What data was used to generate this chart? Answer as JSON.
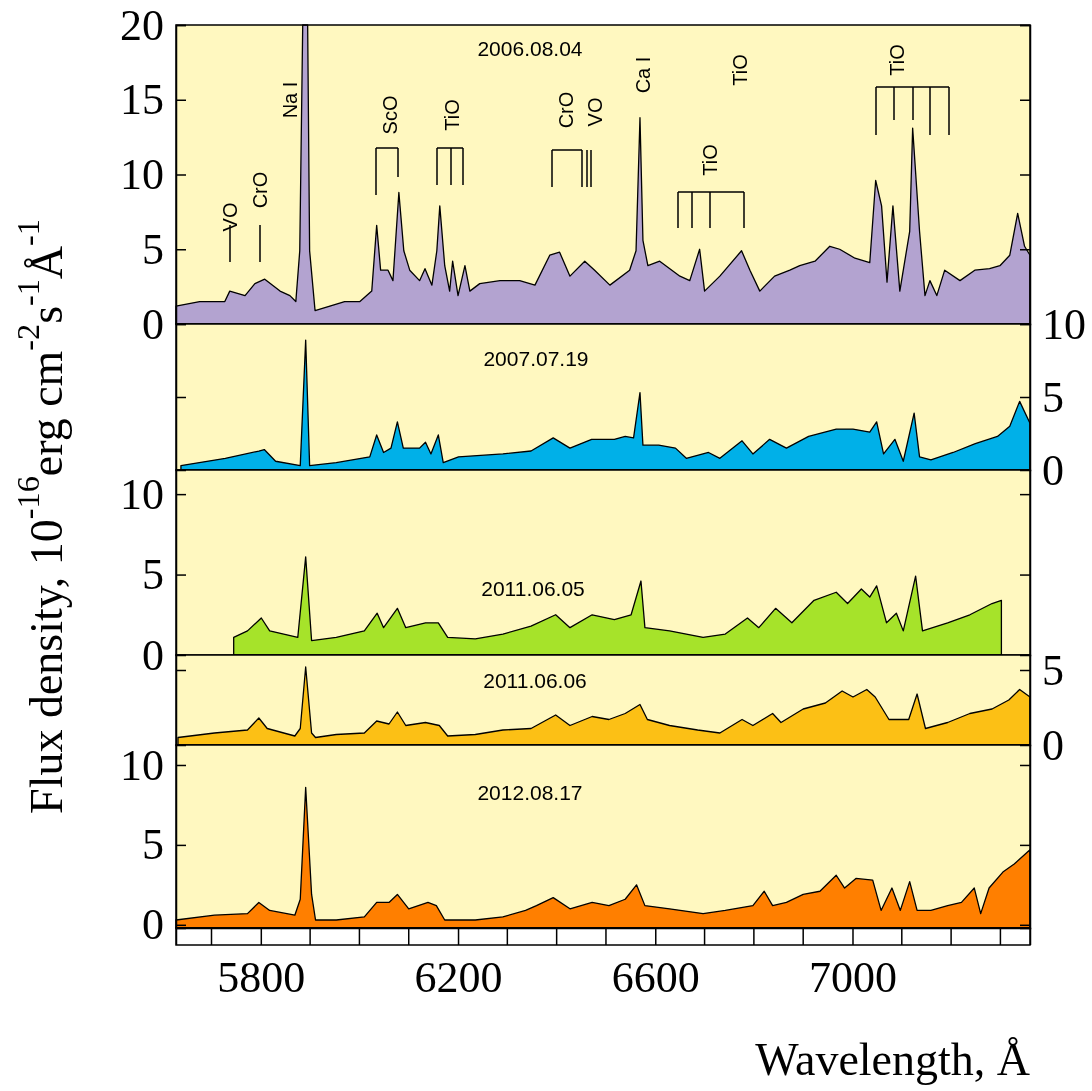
{
  "chart_data": [
    {
      "type": "area",
      "title": "2006.08.04",
      "ylabel": "Flux density, 10$^{-16}$erg cm$^{-2}$s$^{-1}$Å$^{-1}$",
      "tick_labels": "y",
      "xlim": [
        5628,
        7360
      ],
      "ylim": [
        0,
        20
      ],
      "yticks": [
        0,
        5,
        10,
        15,
        20
      ],
      "color": "#b3a3d0",
      "x": [
        5628,
        5676,
        5727,
        5737,
        5768,
        5788,
        5808,
        5839,
        5859,
        5871,
        5879,
        5885,
        5895,
        5899,
        5910,
        5940,
        5970,
        6001,
        6025,
        6035,
        6043,
        6058,
        6068,
        6080,
        6090,
        6102,
        6122,
        6133,
        6147,
        6157,
        6163,
        6173,
        6183,
        6189,
        6200,
        6214,
        6224,
        6244,
        6285,
        6325,
        6356,
        6386,
        6406,
        6427,
        6457,
        6477,
        6508,
        6548,
        6561,
        6569,
        6575,
        6585,
        6609,
        6650,
        6670,
        6690,
        6700,
        6731,
        6775,
        6792,
        6812,
        6842,
        6873,
        6893,
        6924,
        6954,
        6974,
        7005,
        7035,
        7047,
        7059,
        7070,
        7082,
        7096,
        7116,
        7122,
        7136,
        7147,
        7157,
        7171,
        7187,
        7218,
        7248,
        7278,
        7299,
        7319,
        7335,
        7349,
        7360
      ],
      "values": [
        1.2,
        1.5,
        1.5,
        2.2,
        1.9,
        2.7,
        3.0,
        2.2,
        1.9,
        1.5,
        4.9,
        20,
        20,
        4.9,
        0.9,
        1.2,
        1.5,
        1.5,
        2.2,
        6.6,
        3.6,
        3.6,
        2.9,
        8.8,
        4.9,
        3.6,
        2.9,
        3.7,
        2.6,
        4.9,
        7.9,
        3.9,
        2.2,
        4.2,
        1.9,
        3.9,
        2.2,
        2.7,
        2.9,
        2.9,
        2.6,
        4.6,
        4.8,
        3.2,
        4.2,
        3.6,
        2.6,
        3.6,
        4.9,
        13.8,
        5.6,
        3.9,
        4.2,
        3.2,
        2.9,
        5.0,
        2.2,
        3.2,
        4.9,
        3.6,
        2.2,
        3.2,
        3.6,
        3.9,
        4.2,
        5.2,
        5.0,
        4.4,
        4.1,
        9.6,
        7.9,
        2.8,
        7.9,
        2.2,
        6.2,
        13.1,
        6.2,
        1.9,
        2.9,
        1.9,
        3.6,
        2.9,
        3.6,
        3.7,
        3.9,
        4.6,
        7.4,
        5.2,
        4.6
      ],
      "annotations": [
        "VO",
        "CrO",
        "Na I",
        "ScO",
        "TiO",
        "CrO",
        "VO",
        "Ca I",
        "TiO",
        "TiO",
        "TiO"
      ]
    },
    {
      "type": "area",
      "title": "2007.07.19",
      "tick_labels": "y",
      "xlim": [
        5628,
        7360
      ],
      "y2lim": [
        0,
        10
      ],
      "y2ticks": [
        0,
        5,
        10
      ],
      "series": [
        {
          "axis": "y2",
          "color": "#00b0e8",
          "x": [
            5638,
            5728,
            5796,
            5807,
            5830,
            5880,
            5891,
            5899,
            5953,
            6021,
            6035,
            6049,
            6064,
            6077,
            6089,
            6122,
            6134,
            6145,
            6160,
            6170,
            6201,
            6291,
            6348,
            6393,
            6427,
            6471,
            6517,
            6539,
            6556,
            6569,
            6575,
            6607,
            6641,
            6663,
            6708,
            6731,
            6776,
            6798,
            6832,
            6866,
            6911,
            6967,
            7001,
            7035,
            7049,
            7063,
            7086,
            7103,
            7125,
            7136,
            7159,
            7204,
            7249,
            7294,
            7319,
            7339,
            7360
          ],
          "values": [
            0.3,
            0.8,
            1.3,
            1.4,
            0.6,
            0.3,
            8.9,
            0.3,
            0.5,
            0.9,
            2.4,
            1.2,
            1.5,
            3.3,
            1.5,
            1.5,
            1.9,
            1.1,
            2.4,
            0.5,
            0.9,
            1.1,
            1.3,
            2.2,
            1.5,
            2.1,
            2.1,
            2.3,
            2.2,
            5.3,
            1.7,
            1.7,
            1.5,
            0.8,
            1.2,
            0.8,
            2.0,
            1.1,
            2.1,
            1.5,
            2.3,
            2.8,
            2.8,
            2.6,
            3.3,
            1.1,
            2.1,
            0.6,
            3.9,
            0.9,
            0.7,
            1.2,
            1.8,
            2.3,
            3.0,
            4.7,
            3.2
          ]
        }
      ]
    },
    {
      "type": "area",
      "title": "2011.06.05",
      "tick_labels": "y",
      "xlim": [
        5628,
        7360
      ],
      "ylim": [
        0,
        11.5
      ],
      "yticks": [
        0,
        5,
        10
      ],
      "color": "#a6e32a",
      "x": [
        5745,
        5773,
        5801,
        5818,
        5875,
        5891,
        5903,
        5953,
        6010,
        6036,
        6049,
        6077,
        6094,
        6134,
        6160,
        6179,
        6235,
        6291,
        6348,
        6398,
        6427,
        6472,
        6517,
        6551,
        6571,
        6579,
        6629,
        6697,
        6742,
        6787,
        6810,
        6844,
        6877,
        6922,
        6967,
        6990,
        7018,
        7035,
        7049,
        7069,
        7089,
        7103,
        7128,
        7142,
        7193,
        7238,
        7283,
        7302
      ],
      "values": [
        1.1,
        1.5,
        2.3,
        1.5,
        1.1,
        6.1,
        0.9,
        1.1,
        1.5,
        2.6,
        1.7,
        2.9,
        1.7,
        2.0,
        2.0,
        1.1,
        1.0,
        1.3,
        1.8,
        2.5,
        1.7,
        2.5,
        2.2,
        2.5,
        4.6,
        1.7,
        1.5,
        1.1,
        1.3,
        2.3,
        1.7,
        2.9,
        2.0,
        3.4,
        3.9,
        3.2,
        4.1,
        3.6,
        4.3,
        2.0,
        2.6,
        1.5,
        4.9,
        1.5,
        2.0,
        2.5,
        3.2,
        3.4
      ]
    },
    {
      "type": "area",
      "title": "2011.06.06",
      "tick_labels": "y",
      "xlim": [
        5628,
        7360
      ],
      "y2lim": [
        0,
        6
      ],
      "y2ticks": [
        0,
        5
      ],
      "series": [
        {
          "axis": "y2",
          "color": "#fcc015",
          "x": [
            5632,
            5706,
            5773,
            5796,
            5813,
            5869,
            5880,
            5891,
            5903,
            5911,
            5953,
            6010,
            6035,
            6060,
            6077,
            6094,
            6134,
            6162,
            6179,
            6235,
            6291,
            6348,
            6398,
            6427,
            6472,
            6506,
            6539,
            6569,
            6584,
            6629,
            6686,
            6731,
            6776,
            6798,
            6838,
            6855,
            6900,
            6945,
            6979,
            7001,
            7029,
            7046,
            7074,
            7114,
            7131,
            7148,
            7193,
            7238,
            7283,
            7317,
            7339,
            7360
          ],
          "values": [
            0.5,
            0.8,
            1.0,
            1.8,
            1.1,
            0.6,
            1.1,
            5.2,
            0.8,
            0.5,
            0.7,
            0.8,
            1.6,
            1.4,
            2.2,
            1.3,
            1.5,
            1.3,
            0.6,
            0.7,
            1.0,
            1.1,
            2.0,
            1.3,
            1.9,
            1.7,
            2.1,
            2.7,
            1.7,
            1.3,
            1.0,
            0.8,
            1.7,
            1.3,
            2.1,
            1.5,
            2.4,
            2.8,
            3.6,
            3.2,
            3.7,
            3.2,
            1.7,
            1.7,
            3.4,
            1.1,
            1.5,
            2.1,
            2.4,
            3.0,
            3.7,
            3.2
          ]
        }
      ]
    },
    {
      "type": "area",
      "title": "2012.08.17",
      "xlabel": "Wavelength, Å",
      "xlim": [
        5628,
        7360
      ],
      "ylim": [
        -0.2,
        11.25
      ],
      "yticks": [
        0,
        5,
        10
      ],
      "color": "#ff7f00",
      "xticks": [
        5800,
        6200,
        6600,
        7000
      ],
      "x": [
        5628,
        5706,
        5773,
        5796,
        5818,
        5869,
        5880,
        5891,
        5903,
        5911,
        5953,
        6010,
        6035,
        6060,
        6077,
        6100,
        6139,
        6156,
        6173,
        6235,
        6291,
        6337,
        6359,
        6393,
        6427,
        6472,
        6506,
        6539,
        6562,
        6579,
        6629,
        6697,
        6742,
        6798,
        6821,
        6838,
        6866,
        6900,
        6934,
        6967,
        6984,
        7007,
        7041,
        7058,
        7080,
        7097,
        7116,
        7131,
        7159,
        7193,
        7221,
        7247,
        7260,
        7277,
        7305,
        7328,
        7360
      ],
      "values": [
        0.3,
        0.6,
        0.7,
        1.4,
        0.9,
        0.6,
        1.6,
        8.6,
        1.9,
        0.3,
        0.3,
        0.5,
        1.4,
        1.4,
        1.9,
        1.0,
        1.4,
        1.2,
        0.3,
        0.3,
        0.5,
        0.9,
        1.2,
        1.7,
        1.0,
        1.4,
        1.2,
        1.6,
        2.5,
        1.2,
        1.0,
        0.7,
        0.9,
        1.2,
        2.1,
        1.2,
        1.4,
        1.9,
        2.1,
        3.1,
        2.3,
        2.9,
        2.8,
        0.9,
        2.3,
        0.9,
        2.7,
        0.9,
        0.9,
        1.2,
        1.4,
        2.3,
        0.7,
        2.3,
        3.3,
        3.8,
        4.7
      ]
    }
  ]
}
